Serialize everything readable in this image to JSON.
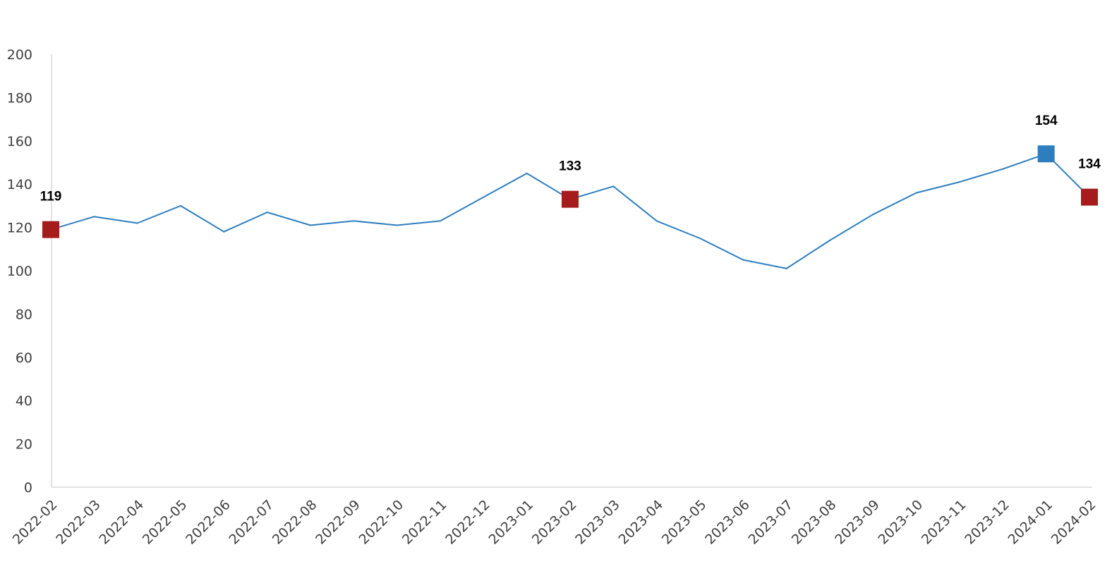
{
  "chart_data": {
    "type": "line",
    "title": "",
    "xlabel": "",
    "ylabel": "",
    "ylim": [
      0,
      200
    ],
    "yticks": [
      0,
      20,
      40,
      60,
      80,
      100,
      120,
      140,
      160,
      180,
      200
    ],
    "grid": false,
    "legend": "none",
    "categories": [
      "2022-02",
      "2022-03",
      "2022-04",
      "2022-05",
      "2022-06",
      "2022-07",
      "2022-08",
      "2022-09",
      "2022-10",
      "2022-11",
      "2022-12",
      "2023-01",
      "2023-02",
      "2023-03",
      "2023-04",
      "2023-05",
      "2023-06",
      "2023-07",
      "2023-08",
      "2023-09",
      "2023-10",
      "2023-11",
      "2023-12",
      "2024-01",
      "2024-02"
    ],
    "series": [
      {
        "values": [
          119,
          125,
          122,
          130,
          118,
          127,
          121,
          123,
          121,
          123,
          134,
          145,
          133,
          139,
          123,
          115,
          105,
          101,
          114,
          126,
          136,
          141,
          147,
          154,
          134
        ],
        "color": "#2E7EBF"
      }
    ],
    "highlights": [
      {
        "index": 0,
        "label": "119",
        "color": "#A61C1C"
      },
      {
        "index": 12,
        "label": "133",
        "color": "#A61C1C"
      },
      {
        "index": 23,
        "label": "154",
        "color": "#2E7EBF"
      },
      {
        "index": 24,
        "label": "134",
        "color": "#A61C1C"
      }
    ],
    "axis_color": "#D9D9D9"
  }
}
